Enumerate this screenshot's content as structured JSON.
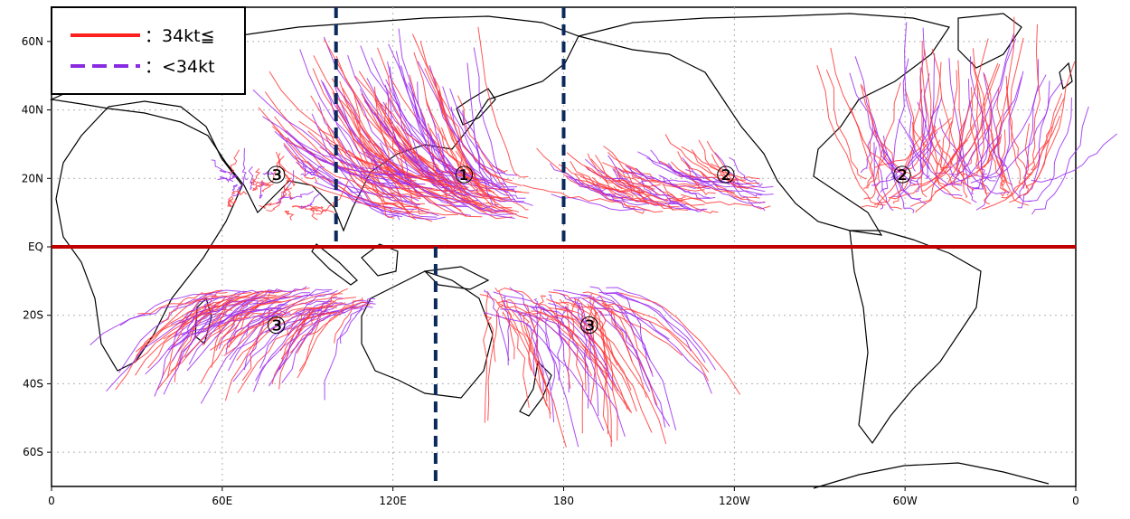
{
  "map": {
    "x_ticks": [
      "0",
      "60E",
      "120E",
      "180",
      "120W",
      "60W",
      "0"
    ],
    "y_ticks": [
      "60N",
      "40N",
      "20N",
      "EQ",
      "20S",
      "40S",
      "60S"
    ],
    "legend": {
      "solid_label": "：34kt≦",
      "dashed_label": "：<34kt"
    },
    "region_labels": [
      {
        "text": "①",
        "lon": 145,
        "lat": 21
      },
      {
        "text": "②",
        "lon": 237,
        "lat": 21
      },
      {
        "text": "②",
        "lon": 299,
        "lat": 21
      },
      {
        "text": "③",
        "lon": 79,
        "lat": 21
      },
      {
        "text": "③",
        "lon": 79,
        "lat": -23
      },
      {
        "text": "③",
        "lon": 189,
        "lat": -23
      }
    ],
    "divider_lines": [
      {
        "lon": 100,
        "lat_from": 70,
        "lat_to": 0
      },
      {
        "lon": 180,
        "lat_from": 70,
        "lat_to": 0
      },
      {
        "lon": 135,
        "lat_from": 0,
        "lat_to": -70
      }
    ],
    "equator_color": "#c00000",
    "colors": {
      "strong_track": "#ff3838",
      "weak_track": "#9a2cf0",
      "divider": "#0b2a5c",
      "land_outline": "#000000",
      "grid": "#b0b0b0"
    }
  }
}
